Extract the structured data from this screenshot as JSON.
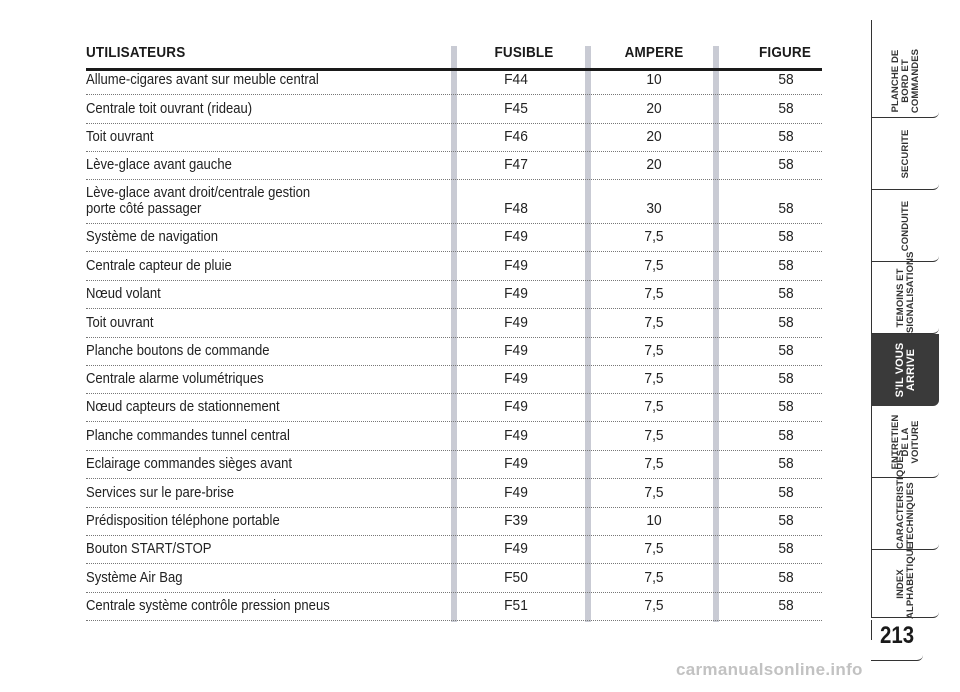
{
  "table": {
    "headers": {
      "users": "UTILISATEURS",
      "fuse": "FUSIBLE",
      "ampere": "AMPERE",
      "figure": "FIGURE"
    },
    "rows": [
      {
        "user": "Allume-cigares avant sur meuble central",
        "fuse": "F44",
        "ampere": "10",
        "figure": "58"
      },
      {
        "user": "Centrale toit ouvrant (rideau)",
        "fuse": "F45",
        "ampere": "20",
        "figure": "58"
      },
      {
        "user": "Toit ouvrant",
        "fuse": "F46",
        "ampere": "20",
        "figure": "58"
      },
      {
        "user": "Lève-glace avant gauche",
        "fuse": "F47",
        "ampere": "20",
        "figure": "58"
      },
      {
        "user": "Lève-glace avant droit/centrale gestion\nporte côté passager",
        "fuse": "F48",
        "ampere": "30",
        "figure": "58"
      },
      {
        "user": "Système de navigation",
        "fuse": "F49",
        "ampere": "7,5",
        "figure": "58"
      },
      {
        "user": "Centrale capteur de pluie",
        "fuse": "F49",
        "ampere": "7,5",
        "figure": "58"
      },
      {
        "user": "Nœud volant",
        "fuse": "F49",
        "ampere": "7,5",
        "figure": "58"
      },
      {
        "user": "Toit ouvrant",
        "fuse": "F49",
        "ampere": "7,5",
        "figure": "58"
      },
      {
        "user": "Planche boutons de commande",
        "fuse": "F49",
        "ampere": "7,5",
        "figure": "58"
      },
      {
        "user": "Centrale alarme volumétriques",
        "fuse": "F49",
        "ampere": "7,5",
        "figure": "58"
      },
      {
        "user": "Nœud capteurs de stationnement",
        "fuse": "F49",
        "ampere": "7,5",
        "figure": "58"
      },
      {
        "user": "Planche commandes tunnel central",
        "fuse": "F49",
        "ampere": "7,5",
        "figure": "58"
      },
      {
        "user": "Eclairage commandes sièges avant",
        "fuse": "F49",
        "ampere": "7,5",
        "figure": "58"
      },
      {
        "user": "Services sur le pare-brise",
        "fuse": "F49",
        "ampere": "7,5",
        "figure": "58"
      },
      {
        "user": "Prédisposition téléphone portable",
        "fuse": "F39",
        "ampere": "10",
        "figure": "58"
      },
      {
        "user": "Bouton START/STOP",
        "fuse": "F49",
        "ampere": "7,5",
        "figure": "58"
      },
      {
        "user": "Système Air Bag",
        "fuse": "F50",
        "ampere": "7,5",
        "figure": "58"
      },
      {
        "user": "Centrale système contrôle pression pneus",
        "fuse": "F51",
        "ampere": "7,5",
        "figure": "58"
      }
    ]
  },
  "side_tabs": [
    {
      "label": "PLANCHE DE\nBORD ET\nCOMMANDES",
      "active": false
    },
    {
      "label": "SECURITE",
      "active": false
    },
    {
      "label": "CONDUITE",
      "active": false
    },
    {
      "label": "TEMOINS ET\nSIGNALISATIONS",
      "active": false
    },
    {
      "label": "S'IL VOUS\nARRIVE",
      "active": true
    },
    {
      "label": "ENTRETIEN\nDE LA VOITURE",
      "active": false
    },
    {
      "label": "CARACTERISTIQUES\nTECHNIQUES",
      "active": false
    },
    {
      "label": "INDEX\nALPHABETIQUE",
      "active": false
    }
  ],
  "page_number": "213",
  "watermark": "carmanualsonline.info",
  "colors": {
    "column_bar": "#c9cbd4",
    "active_tab": "#3a3a3a",
    "watermark": "#c2c2c2"
  }
}
